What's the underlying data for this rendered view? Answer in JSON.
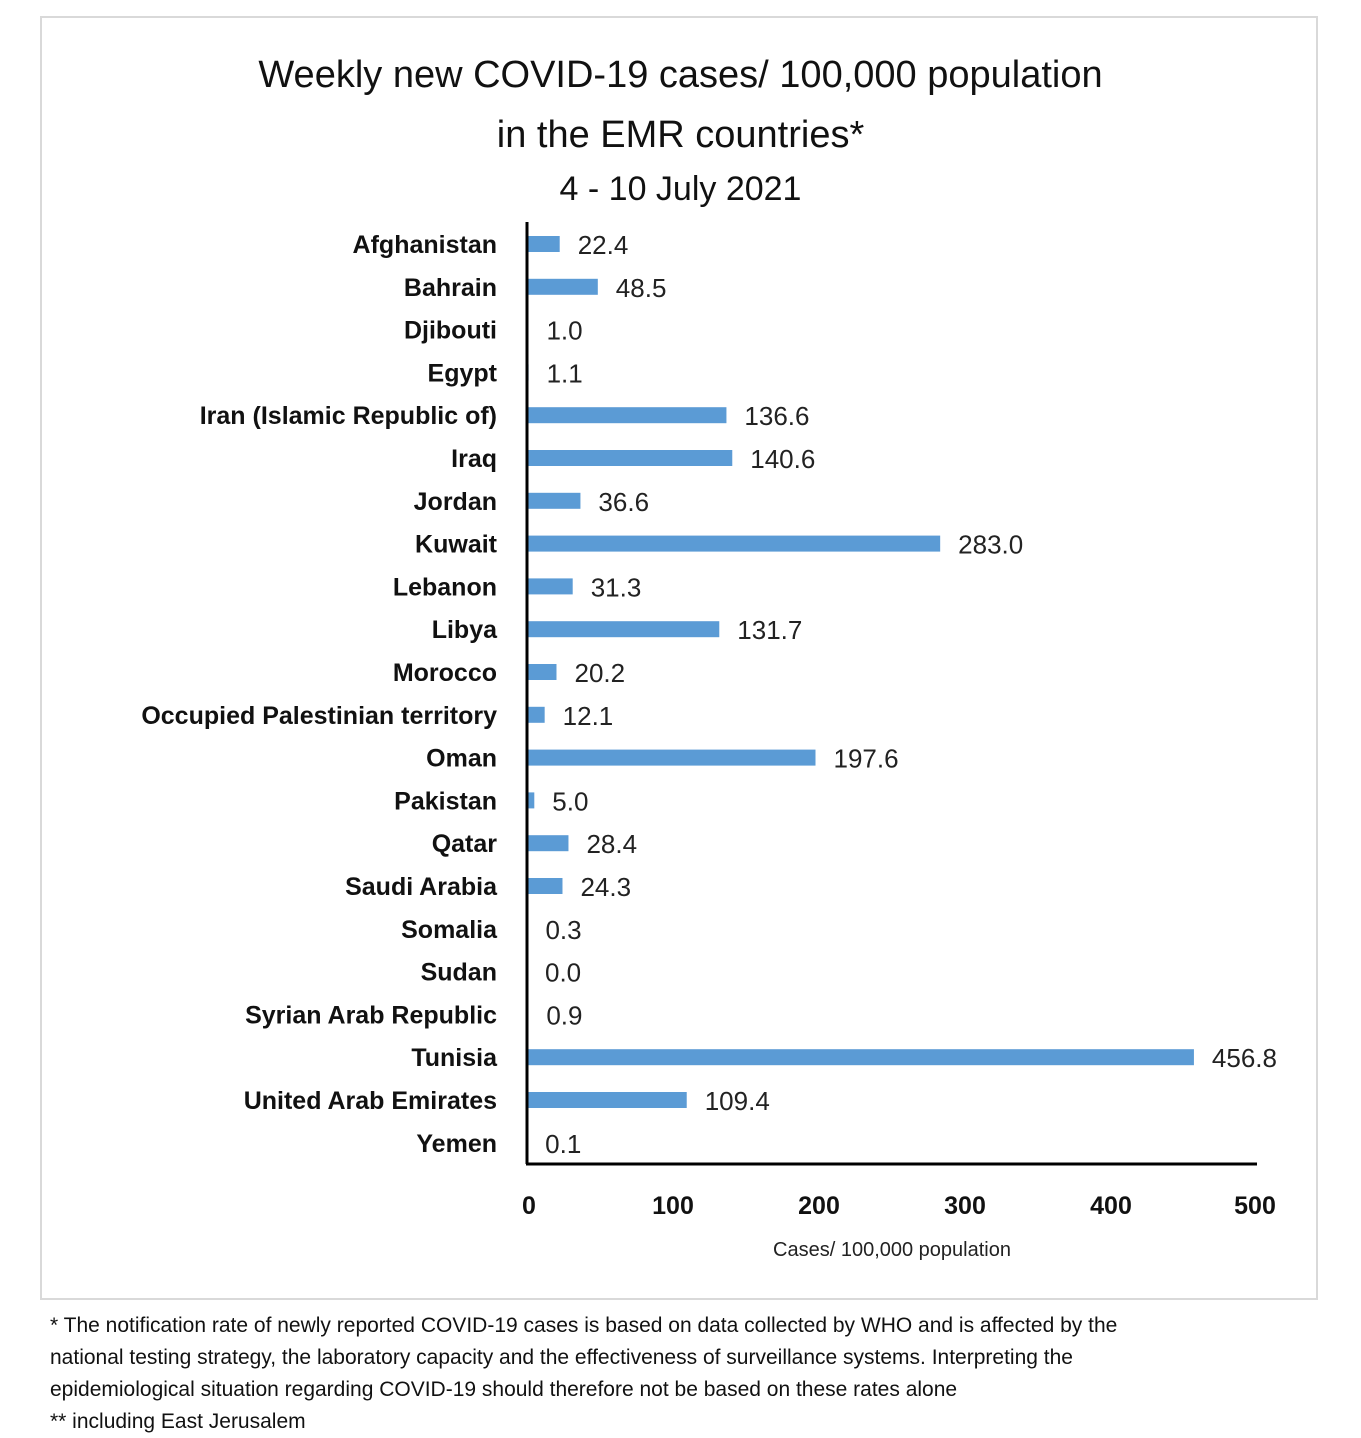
{
  "chart_data": {
    "type": "bar",
    "orientation": "horizontal",
    "title": "Weekly new COVID-19 cases/ 100,000 population",
    "title_line2": "in the EMR countries*",
    "subtitle": "4 - 10 July 2021",
    "xlabel": "Cases/ 100,000 population",
    "ylabel": "",
    "xlim": [
      0,
      500
    ],
    "xticks": [
      "0",
      "100",
      "200",
      "300",
      "400",
      "500"
    ],
    "grid": false,
    "legend": "none",
    "bar_color": "#5b9bd5",
    "categories": [
      "Afghanistan",
      "Bahrain",
      "Djibouti",
      "Egypt",
      "Iran (Islamic Republic of)",
      "Iraq",
      "Jordan",
      "Kuwait",
      "Lebanon",
      "Libya",
      "Morocco",
      "Occupied Palestinian territory",
      "Oman",
      "Pakistan",
      "Qatar",
      "Saudi Arabia",
      "Somalia",
      "Sudan",
      "Syrian Arab Republic",
      "Tunisia",
      "United Arab Emirates",
      "Yemen"
    ],
    "values": [
      22.4,
      48.5,
      1.0,
      1.1,
      136.6,
      140.6,
      36.6,
      283.0,
      31.3,
      131.7,
      20.2,
      12.1,
      197.6,
      5.0,
      28.4,
      24.3,
      0.3,
      0.0,
      0.9,
      456.8,
      109.4,
      0.1
    ],
    "value_labels": [
      "22.4",
      "48.5",
      "1.0",
      "1.1",
      "136.6",
      "140.6",
      "36.6",
      "283.0",
      "31.3",
      "131.7",
      "20.2",
      "12.1",
      "197.6",
      "5.0",
      "28.4",
      "24.3",
      "0.3",
      "0.0",
      "0.9",
      "456.8",
      "109.4",
      "0.1"
    ]
  },
  "footnotes": [
    "* The notification rate of newly reported COVID-19 cases is based on data collected by WHO and is affected by the",
    "national testing strategy, the laboratory capacity and the effectiveness of surveillance systems. Interpreting the",
    "epidemiological situation regarding COVID-19 should therefore not be based on these rates alone",
    "** including East Jerusalem"
  ]
}
